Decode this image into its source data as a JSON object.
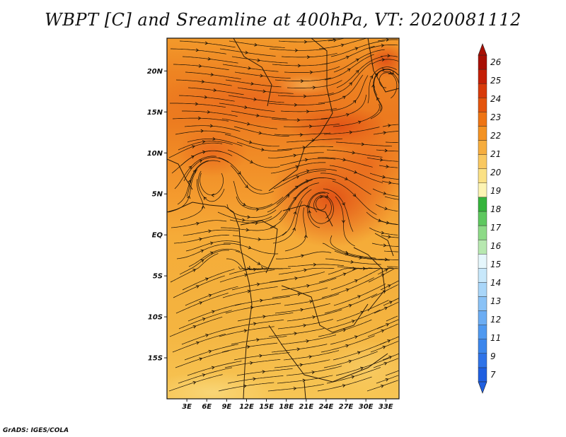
{
  "title": "WBPT [C] and Sreamline at 400hPa, VT: 2020081112",
  "footer": "GrADS: IGES/COLA",
  "map": {
    "field": "Wet-bulb potential temperature",
    "level": "400hPa",
    "valid_time": "2020081112",
    "lon_range": [
      0,
      35
    ],
    "lat_range": [
      -20,
      24
    ],
    "x_ticks": [
      "3E",
      "6E",
      "9E",
      "12E",
      "15E",
      "18E",
      "21E",
      "24E",
      "27E",
      "30E",
      "33E"
    ],
    "y_ticks": [
      "20N",
      "15N",
      "10N",
      "5N",
      "EQ",
      "5S",
      "10S",
      "15S"
    ]
  },
  "colorbar": {
    "labels": [
      "7",
      "9",
      "11",
      "12",
      "13",
      "14",
      "15",
      "16",
      "17",
      "18",
      "19",
      "20",
      "21",
      "22",
      "23",
      "24",
      "25",
      "26"
    ],
    "colors": [
      "#1f5fe0",
      "#2f73e8",
      "#3c86ec",
      "#4f99f0",
      "#6cadf3",
      "#8ac2f6",
      "#a9d6f9",
      "#c8e8fb",
      "#e6f7fc",
      "#b7e8b0",
      "#8dda87",
      "#5ec85f",
      "#35b43c",
      "#fdf4b3",
      "#fbe185",
      "#f9c860",
      "#f6ad3e",
      "#f39222",
      "#ee7413",
      "#e4540d",
      "#d83a0a",
      "#c41f07",
      "#a80f04"
    ]
  },
  "colors": {
    "bg_low": "#f3b540",
    "bg_mid": "#f6ab36",
    "bg_warm": "#ef8a25",
    "bg_hot": "#e8621a",
    "streamline": "#1a1207",
    "border": "#111111"
  }
}
